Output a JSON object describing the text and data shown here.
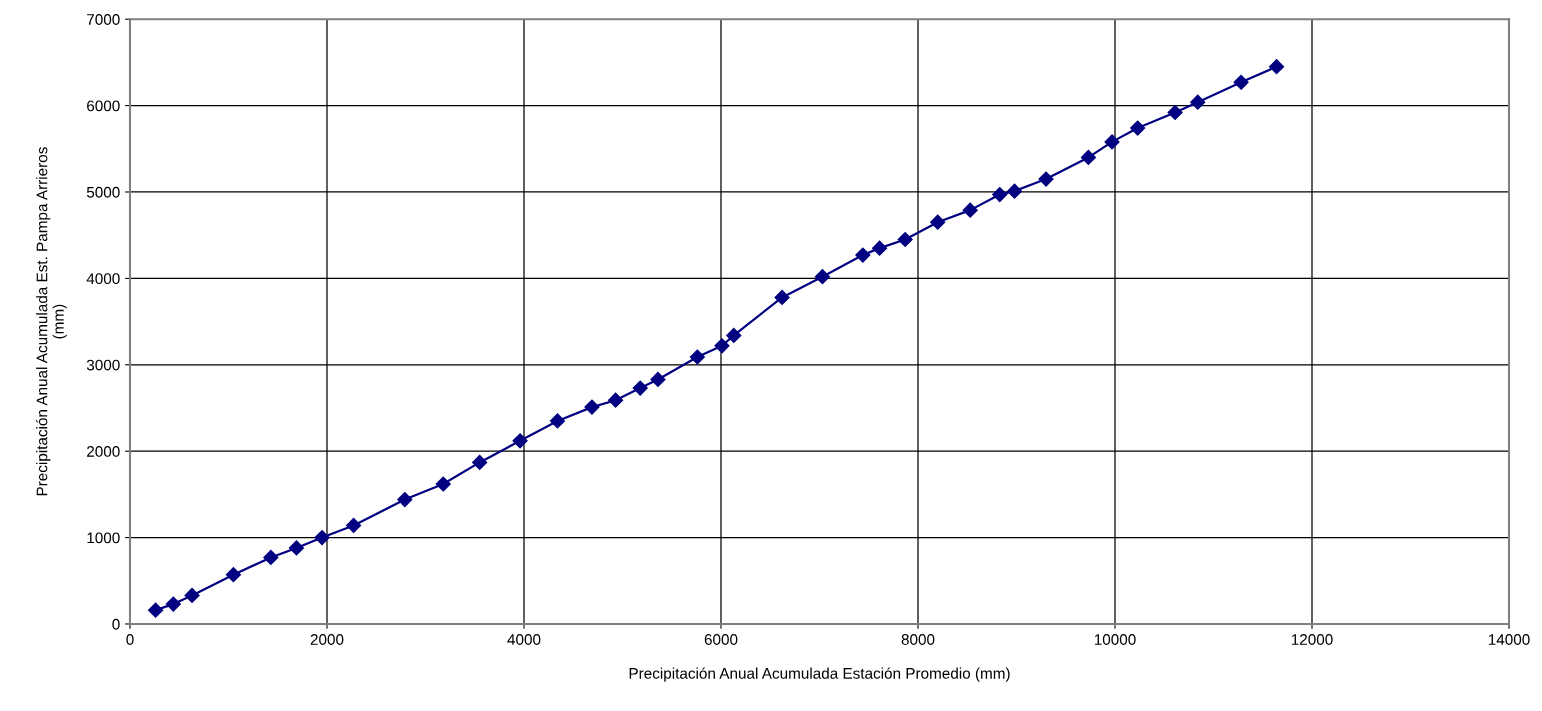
{
  "chart_data": {
    "type": "line",
    "xlabel": "Precipitación Anual Acumulada Estación Promedio (mm)",
    "ylabel": "Precipitación Anual Acumulada Est. Pampa Arrieros\n(mm)",
    "xlim": [
      0,
      14000
    ],
    "xticks": [
      0,
      2000,
      4000,
      6000,
      8000,
      10000,
      12000,
      14000
    ],
    "ylim": [
      0,
      7000
    ],
    "yticks": [
      0,
      1000,
      2000,
      3000,
      4000,
      5000,
      6000,
      7000
    ],
    "grid": true,
    "marker": "diamond",
    "line_style": "solid",
    "series": [
      {
        "color": "#000080",
        "x": [
          260,
          440,
          630,
          1050,
          1430,
          1690,
          1950,
          2270,
          2790,
          3180,
          3550,
          3960,
          4340,
          4690,
          4930,
          5180,
          5360,
          5760,
          6010,
          6130,
          6620,
          7030,
          7440,
          7610,
          7870,
          8200,
          8530,
          8830,
          8980,
          9300,
          9730,
          9970,
          10230,
          10610,
          10840,
          11280,
          11640
        ],
        "values": [
          160,
          230,
          330,
          570,
          770,
          880,
          1000,
          1140,
          1440,
          1620,
          1870,
          2120,
          2350,
          2510,
          2590,
          2730,
          2830,
          3090,
          3220,
          3340,
          3780,
          4020,
          4270,
          4350,
          4450,
          4650,
          4790,
          4970,
          5010,
          5150,
          5400,
          5580,
          5740,
          5920,
          6040,
          6270,
          6450
        ]
      }
    ]
  }
}
